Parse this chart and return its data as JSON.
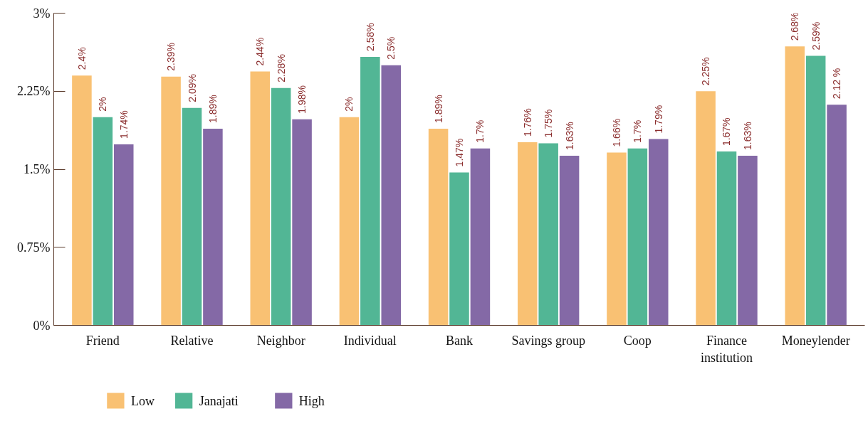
{
  "chart_data": {
    "type": "bar",
    "categories": [
      "Friend",
      "Relative",
      "Neighbor",
      "Individual",
      "Bank",
      "Savings group",
      "Coop",
      "Finance institution",
      "Moneylender"
    ],
    "series": [
      {
        "name": "Low",
        "color": "#f9c173",
        "values": [
          2.4,
          2.39,
          2.44,
          2.0,
          1.89,
          1.76,
          1.66,
          2.25,
          2.68
        ],
        "value_labels": [
          "2.4%",
          "2.39%",
          "2.44%",
          "2%",
          "1.89%",
          "1.76%",
          "1.66%",
          "2.25%",
          "2.68%"
        ]
      },
      {
        "name": "Janajati",
        "color": "#52b695",
        "values": [
          2.0,
          2.09,
          2.28,
          2.58,
          1.47,
          1.75,
          1.7,
          1.67,
          2.59
        ],
        "value_labels": [
          "2%",
          "2.09%",
          "2.28%",
          "2.58%",
          "1.47%",
          "1.75%",
          "1.7%",
          "1.67%",
          "2.59%"
        ]
      },
      {
        "name": "High",
        "color": "#8469a6",
        "values": [
          1.74,
          1.89,
          1.98,
          2.5,
          1.7,
          1.63,
          1.79,
          1.63,
          2.12
        ],
        "value_labels": [
          "1.74%",
          "1.89%",
          "1.98%",
          "2.5%",
          "1.7%",
          "1.63%",
          "1.79%",
          "1.63%",
          "2.12 %"
        ]
      }
    ],
    "ylim": [
      0,
      3
    ],
    "yticks": [
      {
        "value": 0,
        "label": "0%"
      },
      {
        "value": 0.75,
        "label": "0.75%"
      },
      {
        "value": 1.5,
        "label": "1.5%"
      },
      {
        "value": 2.25,
        "label": "2.25%"
      },
      {
        "value": 3,
        "label": "3%"
      }
    ],
    "grid": false,
    "legend": "bottom left"
  }
}
